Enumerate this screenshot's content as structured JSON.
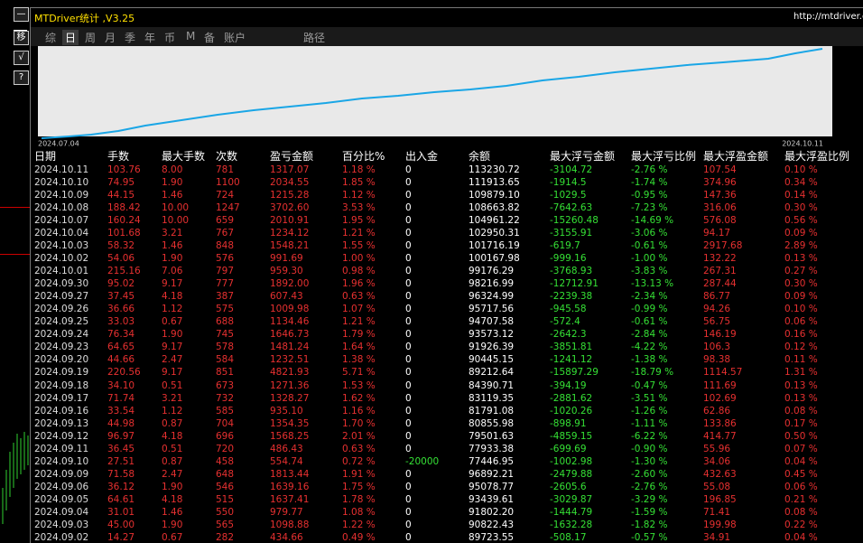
{
  "header": {
    "title": "MTDriver统计 ,V3.25",
    "url": "http://mtdriver.cc"
  },
  "side_buttons": [
    "—",
    "移",
    "√",
    "?"
  ],
  "tabs": [
    "综",
    "日",
    "周",
    "月",
    "季",
    "年",
    "币",
    "M",
    "备",
    "账户",
    "路径"
  ],
  "chart": {
    "start_label": "2024.07.04",
    "end_label": "2024.10.11"
  },
  "table": {
    "columns": [
      "日期",
      "手数",
      "最大手数",
      "次数",
      "盈亏金额",
      "百分比%",
      "出入金",
      "余额",
      "最大浮亏金额",
      "最大浮亏比例",
      "最大浮盈金额",
      "最大浮盈比例"
    ],
    "rows": [
      [
        "2024.10.11",
        "103.76",
        "8.00",
        "781",
        "1317.07",
        "1.18 %",
        "0",
        "113230.72",
        "-3104.72",
        "-2.76 %",
        "107.54",
        "0.10 %"
      ],
      [
        "2024.10.10",
        "74.95",
        "1.90",
        "1100",
        "2034.55",
        "1.85 %",
        "0",
        "111913.65",
        "-1914.5",
        "-1.74 %",
        "374.96",
        "0.34 %"
      ],
      [
        "2024.10.09",
        "44.15",
        "1.46",
        "724",
        "1215.28",
        "1.12 %",
        "0",
        "109879.10",
        "-1029.5",
        "-0.95 %",
        "147.36",
        "0.14 %"
      ],
      [
        "2024.10.08",
        "188.42",
        "10.00",
        "1247",
        "3702.60",
        "3.53 %",
        "0",
        "108663.82",
        "-7642.63",
        "-7.23 %",
        "316.06",
        "0.30 %"
      ],
      [
        "2024.10.07",
        "160.24",
        "10.00",
        "659",
        "2010.91",
        "1.95 %",
        "0",
        "104961.22",
        "-15260.48",
        "-14.69 %",
        "576.08",
        "0.56 %"
      ],
      [
        "2024.10.04",
        "101.68",
        "3.21",
        "767",
        "1234.12",
        "1.21 %",
        "0",
        "102950.31",
        "-3155.91",
        "-3.06 %",
        "94.17",
        "0.09 %"
      ],
      [
        "2024.10.03",
        "58.32",
        "1.46",
        "848",
        "1548.21",
        "1.55 %",
        "0",
        "101716.19",
        "-619.7",
        "-0.61 %",
        "2917.68",
        "2.89 %"
      ],
      [
        "2024.10.02",
        "54.06",
        "1.90",
        "576",
        "991.69",
        "1.00 %",
        "0",
        "100167.98",
        "-999.16",
        "-1.00 %",
        "132.22",
        "0.13 %"
      ],
      [
        "2024.10.01",
        "215.16",
        "7.06",
        "797",
        "959.30",
        "0.98 %",
        "0",
        "99176.29",
        "-3768.93",
        "-3.83 %",
        "267.31",
        "0.27 %"
      ],
      [
        "2024.09.30",
        "95.02",
        "9.17",
        "777",
        "1892.00",
        "1.96 %",
        "0",
        "98216.99",
        "-12712.91",
        "-13.13 %",
        "287.44",
        "0.30 %"
      ],
      [
        "2024.09.27",
        "37.45",
        "4.18",
        "387",
        "607.43",
        "0.63 %",
        "0",
        "96324.99",
        "-2239.38",
        "-2.34 %",
        "86.77",
        "0.09 %"
      ],
      [
        "2024.09.26",
        "36.66",
        "1.12",
        "575",
        "1009.98",
        "1.07 %",
        "0",
        "95717.56",
        "-945.58",
        "-0.99 %",
        "94.26",
        "0.10 %"
      ],
      [
        "2024.09.25",
        "33.03",
        "0.67",
        "688",
        "1134.46",
        "1.21 %",
        "0",
        "94707.58",
        "-572.4",
        "-0.61 %",
        "56.75",
        "0.06 %"
      ],
      [
        "2024.09.24",
        "76.34",
        "1.90",
        "745",
        "1646.73",
        "1.79 %",
        "0",
        "93573.12",
        "-2642.3",
        "-2.84 %",
        "146.19",
        "0.16 %"
      ],
      [
        "2024.09.23",
        "64.65",
        "9.17",
        "578",
        "1481.24",
        "1.64 %",
        "0",
        "91926.39",
        "-3851.81",
        "-4.22 %",
        "106.3",
        "0.12 %"
      ],
      [
        "2024.09.20",
        "44.66",
        "2.47",
        "584",
        "1232.51",
        "1.38 %",
        "0",
        "90445.15",
        "-1241.12",
        "-1.38 %",
        "98.38",
        "0.11 %"
      ],
      [
        "2024.09.19",
        "220.56",
        "9.17",
        "851",
        "4821.93",
        "5.71 %",
        "0",
        "89212.64",
        "-15897.29",
        "-18.79 %",
        "1114.57",
        "1.31 %"
      ],
      [
        "2024.09.18",
        "34.10",
        "0.51",
        "673",
        "1271.36",
        "1.53 %",
        "0",
        "84390.71",
        "-394.19",
        "-0.47 %",
        "111.69",
        "0.13 %"
      ],
      [
        "2024.09.17",
        "71.74",
        "3.21",
        "732",
        "1328.27",
        "1.62 %",
        "0",
        "83119.35",
        "-2881.62",
        "-3.51 %",
        "102.69",
        "0.13 %"
      ],
      [
        "2024.09.16",
        "33.54",
        "1.12",
        "585",
        "935.10",
        "1.16 %",
        "0",
        "81791.08",
        "-1020.26",
        "-1.26 %",
        "62.86",
        "0.08 %"
      ],
      [
        "2024.09.13",
        "44.98",
        "0.87",
        "704",
        "1354.35",
        "1.70 %",
        "0",
        "80855.98",
        "-898.91",
        "-1.11 %",
        "133.86",
        "0.17 %"
      ],
      [
        "2024.09.12",
        "96.97",
        "4.18",
        "696",
        "1568.25",
        "2.01 %",
        "0",
        "79501.63",
        "-4859.15",
        "-6.22 %",
        "414.77",
        "0.50 %"
      ],
      [
        "2024.09.11",
        "36.45",
        "0.51",
        "720",
        "486.43",
        "0.63 %",
        "0",
        "77933.38",
        "-699.69",
        "-0.90 %",
        "55.96",
        "0.07 %"
      ],
      [
        "2024.09.10",
        "27.51",
        "0.87",
        "458",
        "554.74",
        "0.72 %",
        "-20000",
        "77446.95",
        "-1002.98",
        "-1.30 %",
        "34.06",
        "0.04 %"
      ],
      [
        "2024.09.09",
        "71.58",
        "2.47",
        "648",
        "1813.44",
        "1.91 %",
        "0",
        "96892.21",
        "-2479.88",
        "-2.60 %",
        "432.63",
        "0.45 %"
      ],
      [
        "2024.09.06",
        "36.12",
        "1.90",
        "546",
        "1639.16",
        "1.75 %",
        "0",
        "95078.77",
        "-2605.6",
        "-2.76 %",
        "55.08",
        "0.06 %"
      ],
      [
        "2024.09.05",
        "64.61",
        "4.18",
        "515",
        "1637.41",
        "1.78 %",
        "0",
        "93439.61",
        "-3029.87",
        "-3.29 %",
        "196.85",
        "0.21 %"
      ],
      [
        "2024.09.04",
        "31.01",
        "1.46",
        "550",
        "979.77",
        "1.08 %",
        "0",
        "91802.20",
        "-1444.79",
        "-1.59 %",
        "71.41",
        "0.08 %"
      ],
      [
        "2024.09.03",
        "45.00",
        "1.90",
        "565",
        "1098.88",
        "1.22 %",
        "0",
        "90822.43",
        "-1632.28",
        "-1.82 %",
        "199.98",
        "0.22 %"
      ],
      [
        "2024.09.02",
        "14.27",
        "0.67",
        "282",
        "434.66",
        "0.49 %",
        "0",
        "89723.55",
        "-508.17",
        "-0.57 %",
        "34.91",
        "0.04 %"
      ]
    ]
  }
}
